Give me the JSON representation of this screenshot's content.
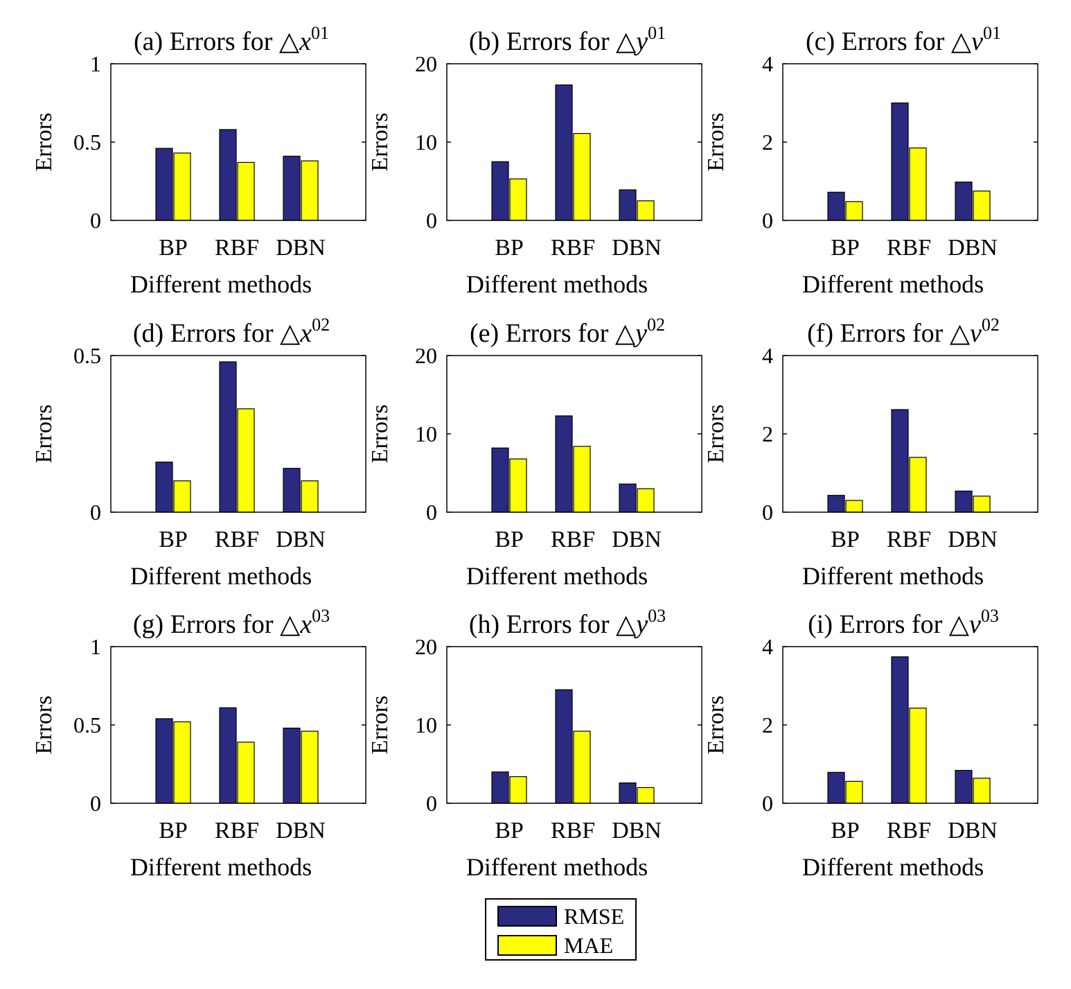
{
  "colors": {
    "rmse": "#2a2a80",
    "mae": "#ffff00"
  },
  "legend": [
    {
      "key": "rmse",
      "label": "RMSE"
    },
    {
      "key": "mae",
      "label": "MAE"
    }
  ],
  "chart_data": [
    {
      "type": "bar",
      "panel": "(a)",
      "title_text": "(a) Errors for △",
      "var": "x",
      "sup": "01",
      "categories": [
        "BP",
        "RBF",
        "DBN"
      ],
      "xlabel": "Different methods",
      "ylabel": "Errors",
      "ylim": [
        0,
        1
      ],
      "yticks": [
        0,
        0.5,
        1
      ],
      "ytick_labels": [
        "0",
        "0.5",
        "1"
      ],
      "series": [
        {
          "name": "RMSE",
          "values": [
            0.46,
            0.58,
            0.41
          ]
        },
        {
          "name": "MAE",
          "values": [
            0.43,
            0.37,
            0.38
          ]
        }
      ]
    },
    {
      "type": "bar",
      "panel": "(b)",
      "title_text": "(b) Errors for △",
      "var": "y",
      "sup": "01",
      "categories": [
        "BP",
        "RBF",
        "DBN"
      ],
      "xlabel": "Different methods",
      "ylabel": "Errors",
      "ylim": [
        0,
        20
      ],
      "yticks": [
        0,
        10,
        20
      ],
      "ytick_labels": [
        "0",
        "10",
        "20"
      ],
      "series": [
        {
          "name": "RMSE",
          "values": [
            7.5,
            17.3,
            3.9
          ]
        },
        {
          "name": "MAE",
          "values": [
            5.3,
            11.1,
            2.5
          ]
        }
      ]
    },
    {
      "type": "bar",
      "panel": "(c)",
      "title_text": "(c) Errors for △",
      "var": "ν",
      "sup": "01",
      "categories": [
        "BP",
        "RBF",
        "DBN"
      ],
      "xlabel": "Different methods",
      "ylabel": "Errors",
      "ylim": [
        0,
        4
      ],
      "yticks": [
        0,
        2,
        4
      ],
      "ytick_labels": [
        "0",
        "2",
        "4"
      ],
      "series": [
        {
          "name": "RMSE",
          "values": [
            0.72,
            3.0,
            0.98
          ]
        },
        {
          "name": "MAE",
          "values": [
            0.48,
            1.85,
            0.75
          ]
        }
      ]
    },
    {
      "type": "bar",
      "panel": "(d)",
      "title_text": "(d) Errors for △",
      "var": "x",
      "sup": "02",
      "categories": [
        "BP",
        "RBF",
        "DBN"
      ],
      "xlabel": "Different methods",
      "ylabel": "Errors",
      "ylim": [
        0,
        0.5
      ],
      "yticks": [
        0,
        0.5
      ],
      "ytick_labels": [
        "0",
        "0.5"
      ],
      "series": [
        {
          "name": "RMSE",
          "values": [
            0.16,
            0.48,
            0.14
          ]
        },
        {
          "name": "MAE",
          "values": [
            0.1,
            0.33,
            0.1
          ]
        }
      ]
    },
    {
      "type": "bar",
      "panel": "(e)",
      "title_text": "(e) Errors for △",
      "var": "y",
      "sup": "02",
      "categories": [
        "BP",
        "RBF",
        "DBN"
      ],
      "xlabel": "Different methods",
      "ylabel": "Errors",
      "ylim": [
        0,
        20
      ],
      "yticks": [
        0,
        10,
        20
      ],
      "ytick_labels": [
        "0",
        "10",
        "20"
      ],
      "series": [
        {
          "name": "RMSE",
          "values": [
            8.2,
            12.3,
            3.6
          ]
        },
        {
          "name": "MAE",
          "values": [
            6.8,
            8.4,
            3.0
          ]
        }
      ]
    },
    {
      "type": "bar",
      "panel": "(f)",
      "title_text": "(f) Errors for △",
      "var": "ν",
      "sup": "02",
      "categories": [
        "BP",
        "RBF",
        "DBN"
      ],
      "xlabel": "Different methods",
      "ylabel": "Errors",
      "ylim": [
        0,
        4
      ],
      "yticks": [
        0,
        2,
        4
      ],
      "ytick_labels": [
        "0",
        "2",
        "4"
      ],
      "series": [
        {
          "name": "RMSE",
          "values": [
            0.43,
            2.62,
            0.54
          ]
        },
        {
          "name": "MAE",
          "values": [
            0.3,
            1.4,
            0.41
          ]
        }
      ]
    },
    {
      "type": "bar",
      "panel": "(g)",
      "title_text": "(g) Errors for △",
      "var": "x",
      "sup": "03",
      "categories": [
        "BP",
        "RBF",
        "DBN"
      ],
      "xlabel": "Different methods",
      "ylabel": "Errors",
      "ylim": [
        0,
        1
      ],
      "yticks": [
        0,
        0.5,
        1
      ],
      "ytick_labels": [
        "0",
        "0.5",
        "1"
      ],
      "series": [
        {
          "name": "RMSE",
          "values": [
            0.54,
            0.61,
            0.48
          ]
        },
        {
          "name": "MAE",
          "values": [
            0.52,
            0.39,
            0.46
          ]
        }
      ]
    },
    {
      "type": "bar",
      "panel": "(h)",
      "title_text": "(h) Errors for △",
      "var": "y",
      "sup": "03",
      "categories": [
        "BP",
        "RBF",
        "DBN"
      ],
      "xlabel": "Different methods",
      "ylabel": "Errors",
      "ylim": [
        0,
        20
      ],
      "yticks": [
        0,
        10,
        20
      ],
      "ytick_labels": [
        "0",
        "10",
        "20"
      ],
      "series": [
        {
          "name": "RMSE",
          "values": [
            4.0,
            14.5,
            2.6
          ]
        },
        {
          "name": "MAE",
          "values": [
            3.4,
            9.2,
            2.0
          ]
        }
      ]
    },
    {
      "type": "bar",
      "panel": "(i)",
      "title_text": "(i) Errors for △",
      "var": "ν",
      "sup": "03",
      "categories": [
        "BP",
        "RBF",
        "DBN"
      ],
      "xlabel": "Different methods",
      "ylabel": "Errors",
      "ylim": [
        0,
        4
      ],
      "yticks": [
        0,
        2,
        4
      ],
      "ytick_labels": [
        "0",
        "2",
        "4"
      ],
      "series": [
        {
          "name": "RMSE",
          "values": [
            0.79,
            3.74,
            0.84
          ]
        },
        {
          "name": "MAE",
          "values": [
            0.56,
            2.43,
            0.64
          ]
        }
      ]
    }
  ]
}
